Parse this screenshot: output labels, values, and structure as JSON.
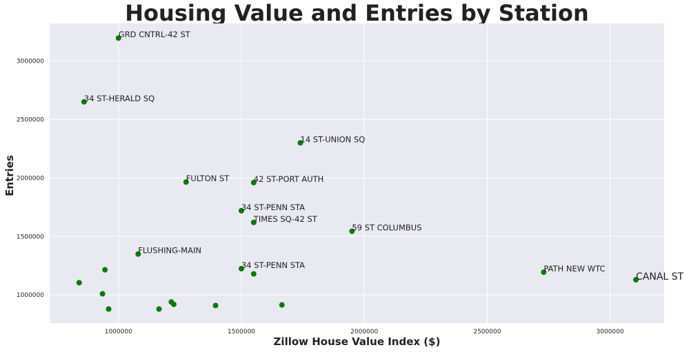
{
  "chart_data": {
    "type": "scatter",
    "title": "Housing Value and Entries by Station",
    "xlabel": "Zillow House Value Index ($)",
    "ylabel": "Entries",
    "xlim": [
      720000,
      3220000
    ],
    "ylim": [
      760000,
      3320000
    ],
    "x_ticks": [
      1000000,
      1500000,
      2000000,
      2500000,
      3000000
    ],
    "y_ticks": [
      1000000,
      1500000,
      2000000,
      2500000,
      3000000
    ],
    "grid": true,
    "colors": {
      "background": "#e9e9f1",
      "grid": "#ffffff",
      "point": "#0a7a0a",
      "text": "#222222"
    },
    "points": [
      {
        "x": 1000000,
        "y": 3195000,
        "label": "GRD CNTRL-42 ST"
      },
      {
        "x": 860000,
        "y": 2650000,
        "label": "34 ST-HERALD SQ"
      },
      {
        "x": 1740000,
        "y": 2300000,
        "label": "14 ST-UNION SQ"
      },
      {
        "x": 1275000,
        "y": 1965000,
        "label": "FULTON ST"
      },
      {
        "x": 1550000,
        "y": 1960000,
        "label": "42 ST-PORT AUTH"
      },
      {
        "x": 1500000,
        "y": 1720000,
        "label": "34 ST-PENN STA"
      },
      {
        "x": 1550000,
        "y": 1620000,
        "label": "TIMES SQ-42 ST"
      },
      {
        "x": 1950000,
        "y": 1545000,
        "label": "59 ST COLUMBUS"
      },
      {
        "x": 1080000,
        "y": 1350000,
        "label": "FLUSHING-MAIN"
      },
      {
        "x": 1500000,
        "y": 1225000,
        "label": "34 ST-PENN STA"
      },
      {
        "x": 2730000,
        "y": 1195000,
        "label": "PATH NEW WTC"
      },
      {
        "x": 3105000,
        "y": 1130000,
        "label": "CANAL ST",
        "large_label": true
      },
      {
        "x": 1550000,
        "y": 1180000,
        "label": ""
      },
      {
        "x": 945000,
        "y": 1215000,
        "label": ""
      },
      {
        "x": 840000,
        "y": 1105000,
        "label": ""
      },
      {
        "x": 935000,
        "y": 1010000,
        "label": ""
      },
      {
        "x": 960000,
        "y": 880000,
        "label": ""
      },
      {
        "x": 1165000,
        "y": 880000,
        "label": ""
      },
      {
        "x": 1215000,
        "y": 940000,
        "label": ""
      },
      {
        "x": 1225000,
        "y": 920000,
        "label": ""
      },
      {
        "x": 1395000,
        "y": 910000,
        "label": ""
      },
      {
        "x": 1665000,
        "y": 915000,
        "label": ""
      }
    ]
  }
}
